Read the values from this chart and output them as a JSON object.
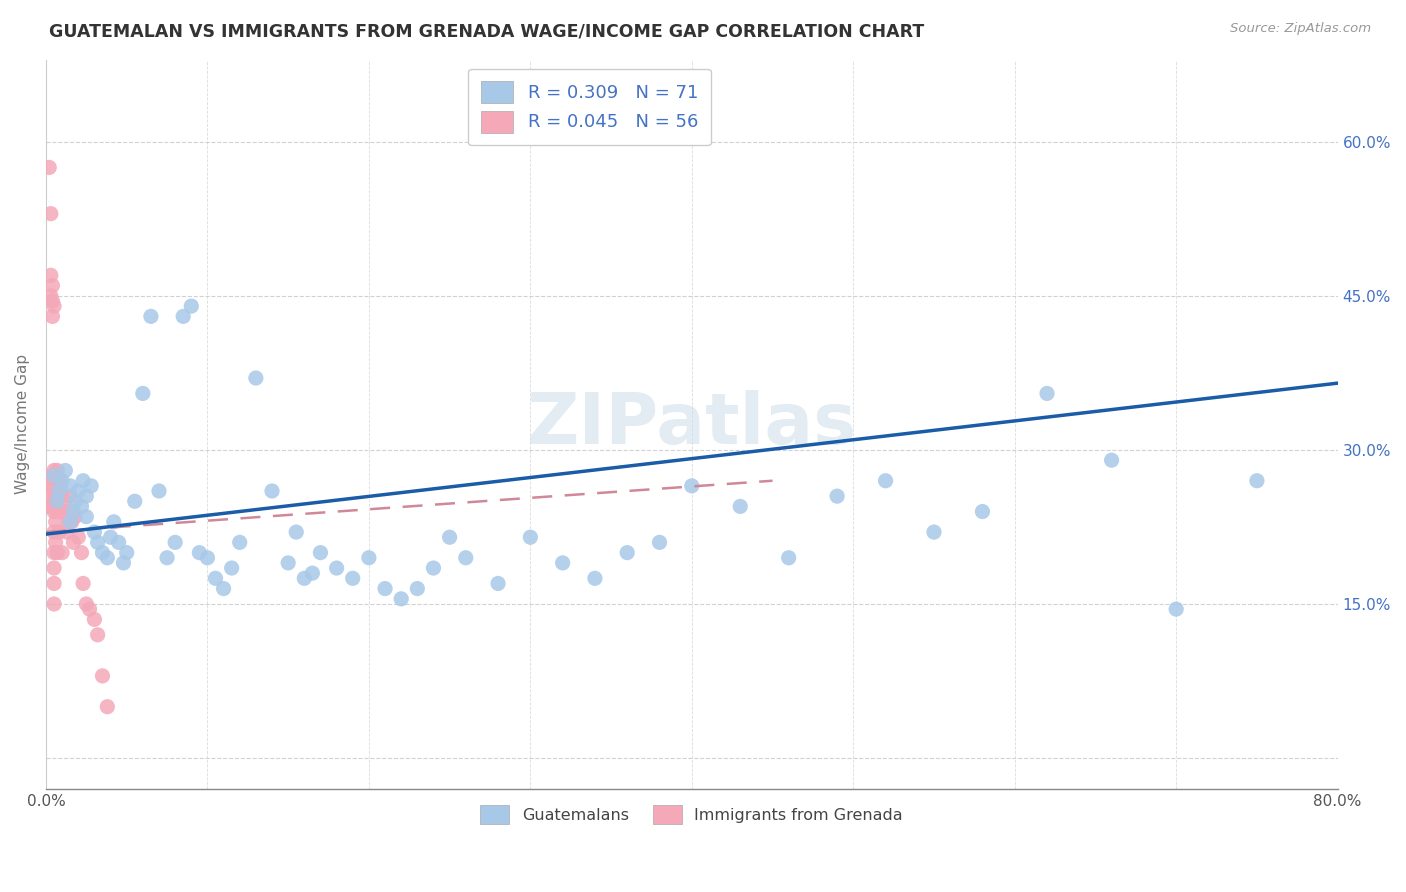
{
  "title": "GUATEMALAN VS IMMIGRANTS FROM GRENADA WAGE/INCOME GAP CORRELATION CHART",
  "source": "Source: ZipAtlas.com",
  "ylabel": "Wage/Income Gap",
  "xlim": [
    0.0,
    0.8
  ],
  "ylim": [
    -0.03,
    0.68
  ],
  "xtick_major_values": [
    0.0,
    0.1,
    0.2,
    0.3,
    0.4,
    0.5,
    0.6,
    0.7,
    0.8
  ],
  "xtick_major_labels": [
    "0.0%",
    "",
    "",
    "",
    "",
    "",
    "",
    "",
    "80.0%"
  ],
  "ytick_values": [
    0.0,
    0.15,
    0.3,
    0.45,
    0.6
  ],
  "ytick_labels_left": [
    "",
    "",
    "",
    "",
    ""
  ],
  "ytick_labels_right": [
    "",
    "15.0%",
    "30.0%",
    "45.0%",
    "60.0%"
  ],
  "legend_blue_label": "R = 0.309   N = 71",
  "legend_pink_label": "R = 0.045   N = 56",
  "blue_color": "#a8c8e8",
  "pink_color": "#f4a8b8",
  "trend_blue_color": "#1a5ca8",
  "trend_pink_color": "#d08898",
  "watermark": "ZIPatlas",
  "legend_entries": [
    "Guatemalans",
    "Immigrants from Grenada"
  ],
  "blue_scatter_x": [
    0.005,
    0.007,
    0.008,
    0.01,
    0.012,
    0.015,
    0.015,
    0.017,
    0.018,
    0.02,
    0.022,
    0.023,
    0.025,
    0.025,
    0.028,
    0.03,
    0.032,
    0.035,
    0.038,
    0.04,
    0.042,
    0.045,
    0.048,
    0.05,
    0.055,
    0.06,
    0.065,
    0.07,
    0.075,
    0.08,
    0.085,
    0.09,
    0.095,
    0.1,
    0.105,
    0.11,
    0.115,
    0.12,
    0.13,
    0.14,
    0.15,
    0.155,
    0.16,
    0.165,
    0.17,
    0.18,
    0.19,
    0.2,
    0.21,
    0.22,
    0.23,
    0.24,
    0.25,
    0.26,
    0.28,
    0.3,
    0.32,
    0.34,
    0.36,
    0.38,
    0.4,
    0.43,
    0.46,
    0.49,
    0.52,
    0.55,
    0.58,
    0.62,
    0.66,
    0.7,
    0.75
  ],
  "blue_scatter_y": [
    0.275,
    0.25,
    0.26,
    0.27,
    0.28,
    0.23,
    0.265,
    0.24,
    0.25,
    0.26,
    0.245,
    0.27,
    0.235,
    0.255,
    0.265,
    0.22,
    0.21,
    0.2,
    0.195,
    0.215,
    0.23,
    0.21,
    0.19,
    0.2,
    0.25,
    0.355,
    0.43,
    0.26,
    0.195,
    0.21,
    0.43,
    0.44,
    0.2,
    0.195,
    0.175,
    0.165,
    0.185,
    0.21,
    0.37,
    0.26,
    0.19,
    0.22,
    0.175,
    0.18,
    0.2,
    0.185,
    0.175,
    0.195,
    0.165,
    0.155,
    0.165,
    0.185,
    0.215,
    0.195,
    0.17,
    0.215,
    0.19,
    0.175,
    0.2,
    0.21,
    0.265,
    0.245,
    0.195,
    0.255,
    0.27,
    0.22,
    0.24,
    0.355,
    0.29,
    0.145,
    0.27
  ],
  "pink_scatter_x": [
    0.002,
    0.002,
    0.003,
    0.003,
    0.003,
    0.003,
    0.004,
    0.004,
    0.004,
    0.004,
    0.004,
    0.004,
    0.005,
    0.005,
    0.005,
    0.005,
    0.005,
    0.005,
    0.005,
    0.005,
    0.005,
    0.005,
    0.005,
    0.006,
    0.006,
    0.006,
    0.006,
    0.007,
    0.007,
    0.007,
    0.007,
    0.008,
    0.008,
    0.008,
    0.009,
    0.009,
    0.01,
    0.01,
    0.01,
    0.011,
    0.012,
    0.013,
    0.014,
    0.015,
    0.016,
    0.017,
    0.018,
    0.02,
    0.022,
    0.023,
    0.025,
    0.027,
    0.03,
    0.032,
    0.035,
    0.038
  ],
  "pink_scatter_y": [
    0.575,
    0.245,
    0.53,
    0.47,
    0.45,
    0.265,
    0.46,
    0.445,
    0.43,
    0.275,
    0.26,
    0.25,
    0.44,
    0.28,
    0.27,
    0.26,
    0.25,
    0.24,
    0.22,
    0.2,
    0.185,
    0.17,
    0.15,
    0.27,
    0.25,
    0.23,
    0.21,
    0.28,
    0.26,
    0.24,
    0.2,
    0.27,
    0.255,
    0.22,
    0.265,
    0.24,
    0.255,
    0.24,
    0.2,
    0.25,
    0.24,
    0.22,
    0.23,
    0.255,
    0.23,
    0.21,
    0.235,
    0.215,
    0.2,
    0.17,
    0.15,
    0.145,
    0.135,
    0.12,
    0.08,
    0.05
  ],
  "blue_trend_x": [
    0.0,
    0.8
  ],
  "blue_trend_y": [
    0.218,
    0.365
  ],
  "pink_trend_x": [
    0.0,
    0.45
  ],
  "pink_trend_y": [
    0.22,
    0.27
  ]
}
